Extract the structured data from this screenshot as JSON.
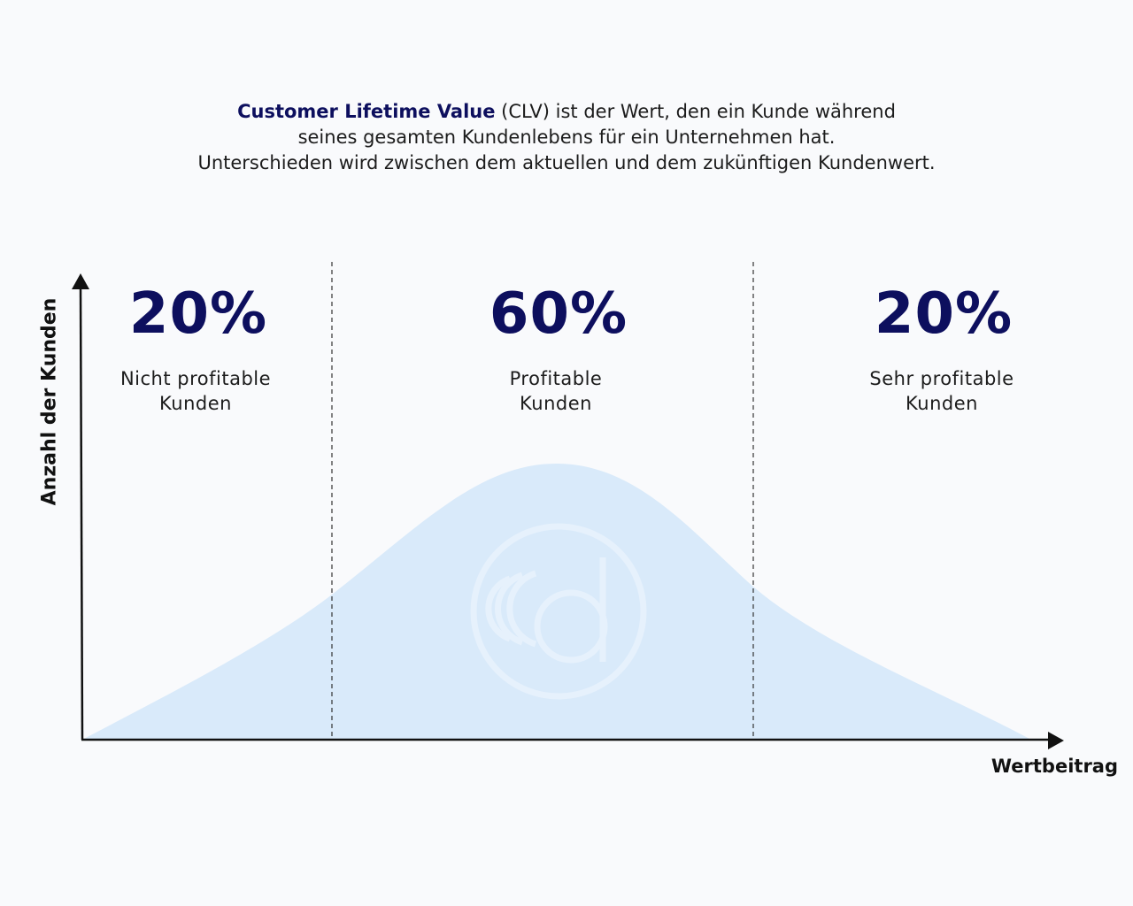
{
  "intro": {
    "highlight": "Customer Lifetime Value",
    "line1_rest": " (CLV) ist der Wert, den ein Kunde während",
    "line2": "seines gesamten Kundenlebens für ein Unternehmen hat.",
    "line3": "Unterschieden wird zwischen dem aktuellen und dem zukünftigen Kundenwert."
  },
  "segments": [
    {
      "percent": "20%",
      "label_line1": "Nicht profitable",
      "label_line2": "Kunden"
    },
    {
      "percent": "60%",
      "label_line1": "Profitable",
      "label_line2": "Kunden"
    },
    {
      "percent": "20%",
      "label_line1": "Sehr profitable",
      "label_line2": "Kunden"
    }
  ],
  "axes": {
    "y_label": "Anzahl der Kunden",
    "x_label": "Wertbeitrag"
  },
  "colors": {
    "accent": "#0d0f5e",
    "curve_fill": "#d9eafa",
    "background": "#f9fafc"
  },
  "watermark_icon": "d-logo-watermark"
}
